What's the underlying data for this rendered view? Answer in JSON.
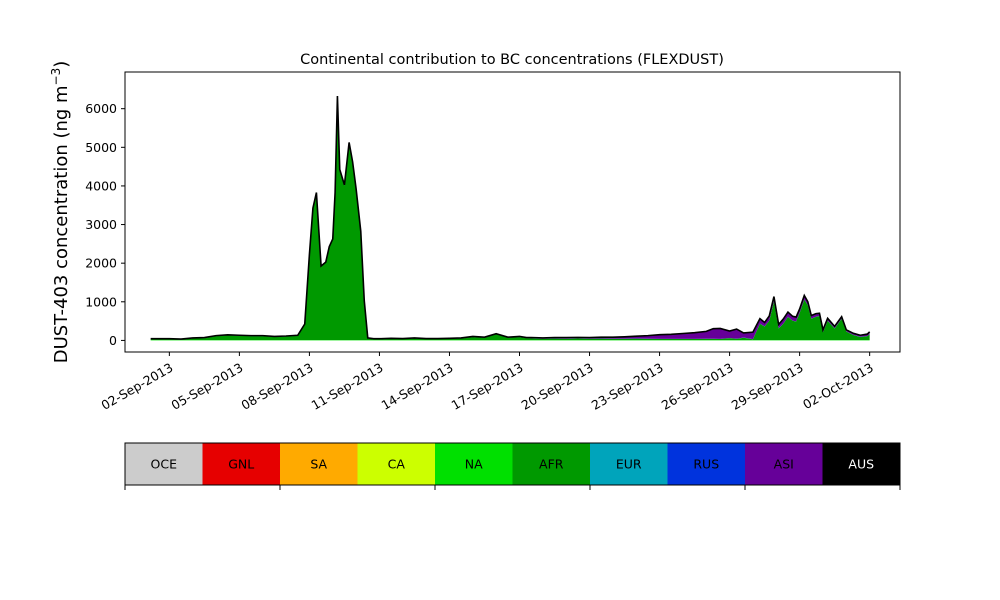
{
  "chart_data": {
    "type": "area",
    "title": "Continental contribution to BC concentrations (FLEXDUST)",
    "ylabel_main": "DUST-403 concentration (ng m",
    "ylabel_sup": "−3",
    "ylabel_close": ")",
    "xlabel": "",
    "ylim": [
      -300,
      6950
    ],
    "yticks": [
      0,
      1000,
      2000,
      3000,
      4000,
      5000,
      6000
    ],
    "xlim_day": [
      0.1,
      33.3
    ],
    "xticks": [
      {
        "day": 2,
        "label": "02-Sep-2013"
      },
      {
        "day": 5,
        "label": "05-Sep-2013"
      },
      {
        "day": 8,
        "label": "08-Sep-2013"
      },
      {
        "day": 11,
        "label": "11-Sep-2013"
      },
      {
        "day": 14,
        "label": "14-Sep-2013"
      },
      {
        "day": 17,
        "label": "17-Sep-2013"
      },
      {
        "day": 20,
        "label": "20-Sep-2013"
      },
      {
        "day": 23,
        "label": "23-Sep-2013"
      },
      {
        "day": 26,
        "label": "26-Sep-2013"
      },
      {
        "day": 29,
        "label": "29-Sep-2013"
      },
      {
        "day": 32,
        "label": "02-Oct-2013"
      }
    ],
    "time_days": [
      1.2,
      2.0,
      2.5,
      3.0,
      3.5,
      4.0,
      4.5,
      5.0,
      5.5,
      6.0,
      6.5,
      7.0,
      7.5,
      7.8,
      8.0,
      8.15,
      8.3,
      8.5,
      8.7,
      8.85,
      9.0,
      9.1,
      9.2,
      9.3,
      9.5,
      9.7,
      9.85,
      10.0,
      10.2,
      10.35,
      10.5,
      10.75,
      11.0,
      11.5,
      12.0,
      12.5,
      13.0,
      13.5,
      14.0,
      14.5,
      15.0,
      15.5,
      16.0,
      16.5,
      17.0,
      17.3,
      17.5,
      18.0,
      18.5,
      19.0,
      19.5,
      20.0,
      20.5,
      21.0,
      21.5,
      22.0,
      22.5,
      23.0,
      23.5,
      24.0,
      24.5,
      25.0,
      25.3,
      25.6,
      26.0,
      26.3,
      26.6,
      27.0,
      27.3,
      27.5,
      27.7,
      27.9,
      28.1,
      28.3,
      28.5,
      28.7,
      28.85,
      29.0,
      29.2,
      29.35,
      29.5,
      29.7,
      29.85,
      30.0,
      30.2,
      30.5,
      30.8,
      31.0,
      31.3,
      31.6,
      31.9,
      32.0
    ],
    "series": [
      {
        "name": "OCE",
        "color": "#cccccc",
        "values": [
          0,
          0,
          0,
          0,
          0,
          0,
          0,
          0,
          0,
          0,
          0,
          0,
          0,
          0,
          0,
          0,
          0,
          0,
          0,
          0,
          0,
          0,
          0,
          0,
          0,
          0,
          0,
          0,
          0,
          0,
          0,
          0,
          0,
          0,
          0,
          0,
          0,
          0,
          0,
          0,
          0,
          0,
          0,
          0,
          0,
          0,
          0,
          0,
          0,
          0,
          0,
          0,
          0,
          0,
          0,
          0,
          0,
          0,
          0,
          0,
          0,
          0,
          0,
          0,
          0,
          0,
          0,
          0,
          0,
          0,
          0,
          0,
          0,
          0,
          0,
          0,
          0,
          0,
          0,
          0,
          0,
          0,
          0,
          0,
          0,
          0,
          0,
          0,
          0,
          0,
          0,
          0
        ]
      },
      {
        "name": "GNL",
        "color": "#e60000",
        "values": [
          0,
          0,
          0,
          0,
          0,
          0,
          0,
          0,
          0,
          0,
          0,
          0,
          0,
          0,
          0,
          0,
          0,
          0,
          0,
          0,
          0,
          0,
          0,
          0,
          0,
          0,
          0,
          0,
          0,
          0,
          0,
          0,
          0,
          0,
          0,
          0,
          0,
          0,
          0,
          0,
          0,
          0,
          0,
          0,
          0,
          0,
          0,
          0,
          0,
          0,
          0,
          0,
          0,
          0,
          0,
          0,
          0,
          0,
          0,
          0,
          0,
          0,
          0,
          0,
          0,
          0,
          0,
          0,
          0,
          0,
          0,
          0,
          0,
          0,
          0,
          0,
          0,
          0,
          0,
          0,
          0,
          0,
          0,
          0,
          0,
          0,
          0,
          0,
          0,
          0,
          0,
          0
        ]
      },
      {
        "name": "SA",
        "color": "#ffaa00",
        "values": [
          0,
          0,
          0,
          0,
          0,
          0,
          0,
          0,
          0,
          0,
          0,
          0,
          0,
          0,
          0,
          0,
          0,
          0,
          0,
          0,
          0,
          0,
          0,
          0,
          0,
          0,
          0,
          0,
          0,
          0,
          0,
          0,
          0,
          0,
          0,
          0,
          0,
          0,
          0,
          0,
          0,
          0,
          0,
          0,
          0,
          0,
          0,
          0,
          0,
          0,
          0,
          0,
          0,
          0,
          0,
          0,
          0,
          0,
          0,
          0,
          0,
          0,
          0,
          0,
          0,
          0,
          0,
          0,
          0,
          0,
          0,
          0,
          0,
          0,
          0,
          0,
          0,
          0,
          0,
          0,
          0,
          0,
          0,
          0,
          0,
          0,
          0,
          0,
          0,
          0,
          0,
          0
        ]
      },
      {
        "name": "CA",
        "color": "#ccff00",
        "values": [
          0,
          0,
          0,
          0,
          0,
          0,
          0,
          0,
          0,
          0,
          0,
          0,
          0,
          0,
          0,
          0,
          0,
          0,
          0,
          0,
          0,
          0,
          0,
          0,
          0,
          0,
          0,
          0,
          0,
          0,
          0,
          0,
          0,
          0,
          0,
          0,
          0,
          0,
          0,
          0,
          0,
          0,
          0,
          0,
          0,
          0,
          0,
          0,
          0,
          0,
          0,
          0,
          0,
          0,
          0,
          0,
          0,
          0,
          0,
          0,
          0,
          0,
          0,
          0,
          0,
          0,
          0,
          0,
          0,
          0,
          0,
          0,
          0,
          0,
          0,
          0,
          0,
          0,
          0,
          0,
          0,
          0,
          0,
          0,
          0,
          0,
          0,
          0,
          0,
          0,
          0,
          0
        ]
      },
      {
        "name": "NA",
        "color": "#00e000",
        "values": [
          10,
          10,
          10,
          10,
          10,
          10,
          10,
          10,
          10,
          10,
          10,
          10,
          10,
          10,
          10,
          10,
          10,
          10,
          10,
          10,
          10,
          10,
          10,
          10,
          10,
          10,
          10,
          10,
          10,
          10,
          10,
          10,
          10,
          10,
          10,
          10,
          10,
          10,
          10,
          10,
          10,
          10,
          10,
          10,
          10,
          10,
          10,
          10,
          10,
          10,
          10,
          10,
          10,
          10,
          10,
          10,
          10,
          10,
          10,
          10,
          10,
          10,
          10,
          10,
          10,
          10,
          10,
          10,
          10,
          10,
          10,
          10,
          10,
          10,
          10,
          10,
          10,
          10,
          10,
          10,
          10,
          10,
          10,
          10,
          10,
          10,
          10,
          10,
          10,
          10,
          10,
          10
        ]
      },
      {
        "name": "AFR",
        "color": "#009900",
        "values": [
          20,
          20,
          10,
          40,
          50,
          100,
          120,
          110,
          100,
          100,
          80,
          90,
          110,
          400,
          2200,
          3400,
          3800,
          1900,
          2000,
          2400,
          2600,
          3800,
          6300,
          4400,
          4000,
          5100,
          4600,
          3900,
          2800,
          1000,
          40,
          20,
          20,
          30,
          25,
          40,
          25,
          25,
          30,
          40,
          80,
          60,
          150,
          60,
          80,
          50,
          40,
          30,
          35,
          30,
          40,
          30,
          35,
          30,
          30,
          35,
          30,
          25,
          25,
          25,
          25,
          30,
          30,
          25,
          50,
          30,
          60,
          20,
          420,
          350,
          500,
          1000,
          300,
          420,
          600,
          500,
          480,
          700,
          1050,
          900,
          550,
          600,
          620,
          200,
          500,
          300,
          550,
          220,
          130,
          80,
          100,
          150
        ]
      },
      {
        "name": "EUR",
        "color": "#00a4bb",
        "values": [
          2,
          2,
          2,
          2,
          2,
          2,
          2,
          2,
          2,
          2,
          2,
          2,
          2,
          2,
          5,
          5,
          5,
          5,
          5,
          5,
          5,
          5,
          5,
          5,
          5,
          5,
          5,
          5,
          5,
          5,
          2,
          2,
          2,
          2,
          2,
          2,
          2,
          2,
          2,
          2,
          2,
          2,
          2,
          2,
          2,
          2,
          2,
          2,
          2,
          2,
          2,
          2,
          2,
          2,
          2,
          2,
          2,
          2,
          2,
          2,
          2,
          2,
          2,
          2,
          2,
          2,
          2,
          2,
          2,
          2,
          2,
          2,
          2,
          2,
          2,
          2,
          2,
          2,
          2,
          2,
          2,
          2,
          2,
          2,
          2,
          2,
          2,
          2,
          2,
          2,
          2,
          2
        ]
      },
      {
        "name": "RUS",
        "color": "#0033dd",
        "values": [
          2,
          2,
          2,
          2,
          2,
          2,
          2,
          2,
          2,
          2,
          2,
          2,
          2,
          2,
          2,
          2,
          2,
          2,
          2,
          2,
          2,
          2,
          2,
          2,
          2,
          2,
          2,
          2,
          2,
          2,
          2,
          2,
          2,
          2,
          2,
          2,
          2,
          2,
          2,
          2,
          2,
          2,
          2,
          2,
          2,
          2,
          2,
          2,
          2,
          2,
          2,
          2,
          2,
          2,
          2,
          2,
          2,
          2,
          2,
          2,
          2,
          2,
          2,
          2,
          2,
          2,
          2,
          2,
          2,
          2,
          2,
          2,
          2,
          2,
          2,
          2,
          2,
          2,
          2,
          2,
          2,
          2,
          2,
          2,
          2,
          2,
          2,
          2,
          2,
          2,
          2,
          2
        ]
      },
      {
        "name": "ASI",
        "color": "#660099",
        "values": [
          10,
          10,
          10,
          10,
          10,
          10,
          10,
          10,
          10,
          10,
          10,
          10,
          10,
          10,
          10,
          10,
          10,
          10,
          10,
          10,
          10,
          10,
          10,
          10,
          10,
          10,
          10,
          10,
          10,
          10,
          10,
          10,
          10,
          10,
          10,
          10,
          10,
          10,
          10,
          10,
          10,
          10,
          10,
          10,
          10,
          10,
          20,
          20,
          25,
          30,
          25,
          30,
          35,
          40,
          50,
          60,
          80,
          110,
          120,
          140,
          160,
          190,
          260,
          270,
          180,
          250,
          120,
          180,
          130,
          100,
          120,
          120,
          100,
          120,
          120,
          110,
          110,
          100,
          100,
          90,
          80,
          80,
          70,
          60,
          60,
          50,
          50,
          40,
          40,
          40,
          50,
          60
        ]
      },
      {
        "name": "AUS",
        "color": "#000000",
        "values": [
          0,
          0,
          0,
          0,
          0,
          0,
          0,
          0,
          0,
          0,
          0,
          0,
          0,
          0,
          0,
          0,
          0,
          0,
          0,
          0,
          0,
          0,
          0,
          0,
          0,
          0,
          0,
          0,
          0,
          0,
          0,
          0,
          0,
          0,
          0,
          0,
          0,
          0,
          0,
          0,
          0,
          0,
          0,
          0,
          0,
          0,
          0,
          0,
          0,
          0,
          0,
          0,
          0,
          0,
          0,
          0,
          0,
          0,
          0,
          0,
          0,
          0,
          0,
          0,
          0,
          0,
          0,
          0,
          0,
          0,
          0,
          0,
          0,
          0,
          0,
          0,
          0,
          0,
          0,
          0,
          0,
          0,
          0,
          0,
          0,
          0,
          0,
          0,
          0,
          0,
          0,
          0
        ]
      }
    ],
    "colorbar": {
      "labels": [
        "OCE",
        "GNL",
        "SA",
        "CA",
        "NA",
        "AFR",
        "EUR",
        "RUS",
        "ASI",
        "AUS"
      ],
      "colors": [
        "#cccccc",
        "#e60000",
        "#ffaa00",
        "#ccff00",
        "#00e000",
        "#009900",
        "#00a4bb",
        "#0033dd",
        "#660099",
        "#000000"
      ],
      "text_colors": [
        "#000000",
        "#000000",
        "#000000",
        "#000000",
        "#000000",
        "#000000",
        "#000000",
        "#000000",
        "#000000",
        "#ffffff"
      ]
    },
    "grid": false,
    "legend": "colorbar below plot"
  }
}
